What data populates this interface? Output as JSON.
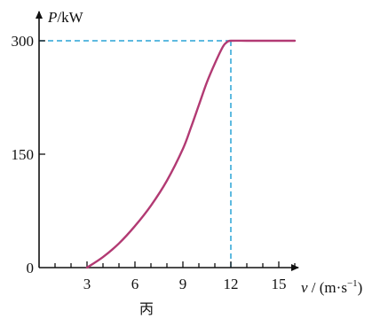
{
  "chart_data": {
    "type": "line",
    "title": "",
    "ylabel": {
      "var": "P",
      "unit": "/kW"
    },
    "xlabel": {
      "var": "v",
      "unit_prefix": " / (m·s",
      "unit_exp": "−1",
      "unit_suffix": ")"
    },
    "caption": "丙",
    "xlim": [
      0,
      16.5
    ],
    "ylim": [
      0,
      300
    ],
    "x_ticks": [
      3,
      6,
      9,
      12,
      15
    ],
    "x_minor_step": 1,
    "y_ticks": [
      0,
      150,
      300
    ],
    "origin_label": "0",
    "series": [
      {
        "color": "#b23a73",
        "x": [
          3,
          4,
          5,
          6,
          7,
          8,
          9,
          9.5,
          10,
          10.5,
          11,
          11.5,
          11.75,
          12,
          13,
          14,
          15,
          16
        ],
        "y": [
          0,
          14,
          32,
          55,
          82,
          115,
          157,
          185,
          215,
          245,
          270,
          292,
          298,
          300,
          300,
          300,
          300,
          300
        ]
      }
    ],
    "reference_lines": {
      "x": 12,
      "y": 300,
      "color": "#29a3d6"
    }
  }
}
